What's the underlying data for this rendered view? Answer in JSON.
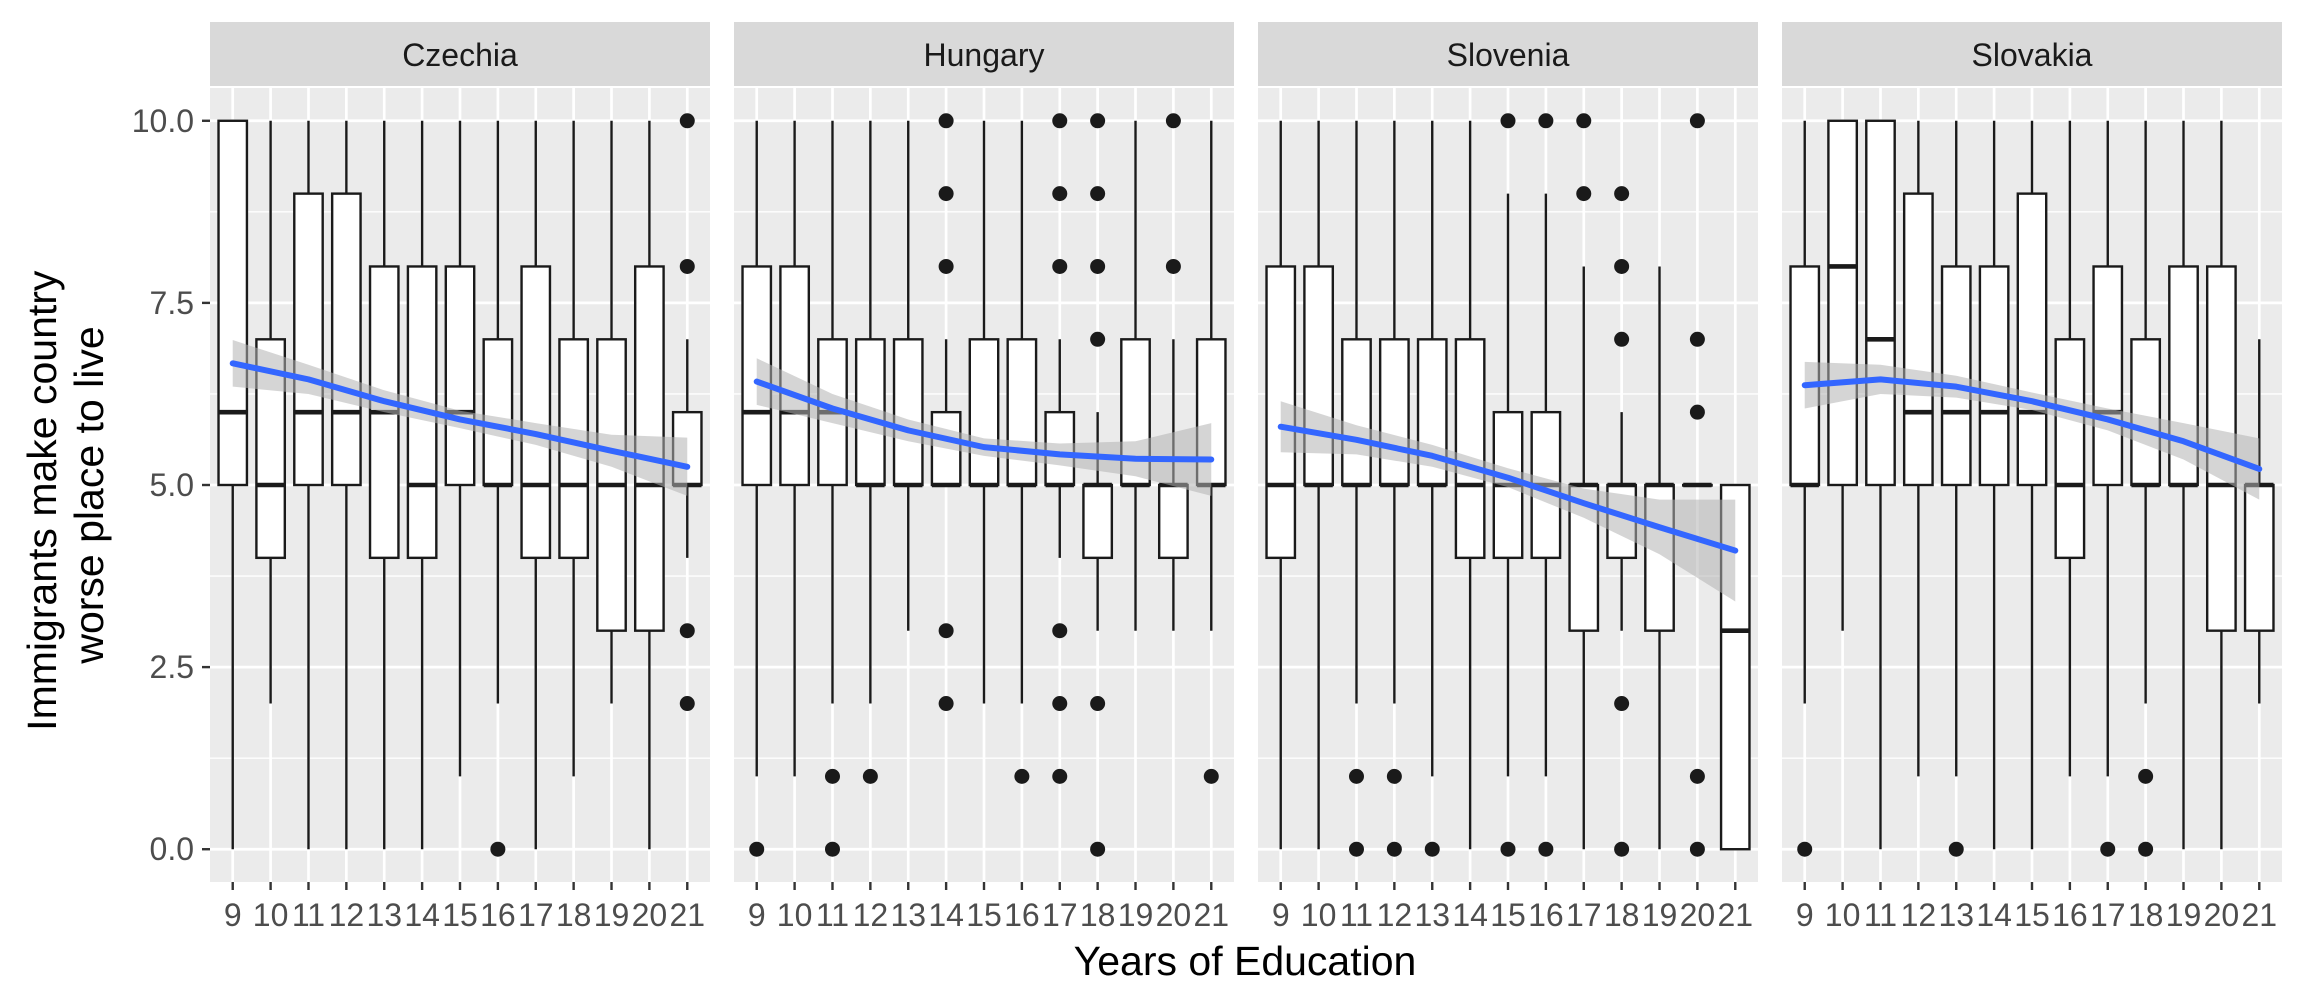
{
  "chart_data": {
    "type": "boxplot",
    "xlabel": "Years of Education",
    "ylabel_lines": [
      "Immigrants make country",
      "worse place to live"
    ],
    "x_categories": [
      9,
      10,
      11,
      12,
      13,
      14,
      15,
      16,
      17,
      18,
      19,
      20,
      21
    ],
    "x_tick_labels": [
      "9",
      "10",
      "11",
      "12",
      "13",
      "14",
      "15",
      "16",
      "17",
      "18",
      "19",
      "20",
      "21"
    ],
    "ylim": [
      -0.45,
      10.45
    ],
    "y_ticks": [
      0,
      2.5,
      5,
      7.5,
      10
    ],
    "y_tick_labels": [
      "0.0",
      "2.5",
      "5.0",
      "7.5",
      "10.0"
    ],
    "grid": true,
    "colors": {
      "panel_bg": "#EBEBEB",
      "strip_bg": "#D9D9D9",
      "grid": "#FFFFFF",
      "box_fill": "#FFFFFF",
      "box_stroke": "#1A1A1A",
      "smooth_line": "#3366FF",
      "smooth_band": "#B3B3B3",
      "axis_text": "#4D4D4D"
    },
    "panels": [
      {
        "name": "Czechia",
        "boxes": [
          {
            "x": 9,
            "lower": 0,
            "q1": 5,
            "median": 6,
            "q3": 10,
            "upper": 10,
            "outliers": []
          },
          {
            "x": 10,
            "lower": 2,
            "q1": 4,
            "median": 5,
            "q3": 7,
            "upper": 10,
            "outliers": []
          },
          {
            "x": 11,
            "lower": 0,
            "q1": 5,
            "median": 6,
            "q3": 9,
            "upper": 10,
            "outliers": []
          },
          {
            "x": 12,
            "lower": 0,
            "q1": 5,
            "median": 6,
            "q3": 9,
            "upper": 10,
            "outliers": []
          },
          {
            "x": 13,
            "lower": 0,
            "q1": 4,
            "median": 6,
            "q3": 8,
            "upper": 10,
            "outliers": []
          },
          {
            "x": 14,
            "lower": 0,
            "q1": 4,
            "median": 5,
            "q3": 8,
            "upper": 10,
            "outliers": []
          },
          {
            "x": 15,
            "lower": 1,
            "q1": 5,
            "median": 6,
            "q3": 8,
            "upper": 10,
            "outliers": []
          },
          {
            "x": 16,
            "lower": 2,
            "q1": 5,
            "median": 5,
            "q3": 7,
            "upper": 10,
            "outliers": [
              0
            ]
          },
          {
            "x": 17,
            "lower": 0,
            "q1": 4,
            "median": 5,
            "q3": 8,
            "upper": 10,
            "outliers": []
          },
          {
            "x": 18,
            "lower": 1,
            "q1": 4,
            "median": 5,
            "q3": 7,
            "upper": 10,
            "outliers": []
          },
          {
            "x": 19,
            "lower": 2,
            "q1": 3,
            "median": 5,
            "q3": 7,
            "upper": 10,
            "outliers": []
          },
          {
            "x": 20,
            "lower": 0,
            "q1": 3,
            "median": 5,
            "q3": 8,
            "upper": 10,
            "outliers": []
          },
          {
            "x": 21,
            "lower": 4,
            "q1": 5,
            "median": 5,
            "q3": 6,
            "upper": 7,
            "outliers": [
              10,
              8,
              3,
              2
            ]
          }
        ],
        "smooth": [
          {
            "x": 9,
            "y": 6.67,
            "lo": 6.35,
            "hi": 6.99
          },
          {
            "x": 11,
            "y": 6.45,
            "lo": 6.25,
            "hi": 6.65
          },
          {
            "x": 13,
            "y": 6.15,
            "lo": 6.0,
            "hi": 6.3
          },
          {
            "x": 15,
            "y": 5.9,
            "lo": 5.78,
            "hi": 6.02
          },
          {
            "x": 17,
            "y": 5.7,
            "lo": 5.55,
            "hi": 5.85
          },
          {
            "x": 19,
            "y": 5.47,
            "lo": 5.25,
            "hi": 5.69
          },
          {
            "x": 21,
            "y": 5.25,
            "lo": 4.85,
            "hi": 5.65
          }
        ]
      },
      {
        "name": "Hungary",
        "boxes": [
          {
            "x": 9,
            "lower": 1,
            "q1": 5,
            "median": 6,
            "q3": 8,
            "upper": 10,
            "outliers": [
              0
            ]
          },
          {
            "x": 10,
            "lower": 1,
            "q1": 5,
            "median": 6,
            "q3": 8,
            "upper": 10,
            "outliers": []
          },
          {
            "x": 11,
            "lower": 2,
            "q1": 5,
            "median": 6,
            "q3": 7,
            "upper": 10,
            "outliers": [
              1,
              0
            ]
          },
          {
            "x": 12,
            "lower": 2,
            "q1": 5,
            "median": 5,
            "q3": 7,
            "upper": 10,
            "outliers": [
              1
            ]
          },
          {
            "x": 13,
            "lower": 3,
            "q1": 5,
            "median": 5,
            "q3": 7,
            "upper": 10,
            "outliers": []
          },
          {
            "x": 14,
            "lower": 5,
            "q1": 5,
            "median": 5,
            "q3": 6,
            "upper": 7,
            "outliers": [
              10,
              9,
              8,
              3,
              2
            ]
          },
          {
            "x": 15,
            "lower": 2,
            "q1": 5,
            "median": 5,
            "q3": 7,
            "upper": 10,
            "outliers": []
          },
          {
            "x": 16,
            "lower": 2,
            "q1": 5,
            "median": 5,
            "q3": 7,
            "upper": 10,
            "outliers": [
              1
            ]
          },
          {
            "x": 17,
            "lower": 4,
            "q1": 5,
            "median": 5,
            "q3": 6,
            "upper": 7,
            "outliers": [
              10,
              9,
              8,
              3,
              2,
              1
            ]
          },
          {
            "x": 18,
            "lower": 3,
            "q1": 4,
            "median": 5,
            "q3": 5,
            "upper": 6,
            "outliers": [
              10,
              9,
              8,
              7,
              2,
              0
            ]
          },
          {
            "x": 19,
            "lower": 3,
            "q1": 5,
            "median": 5,
            "q3": 7,
            "upper": 10,
            "outliers": []
          },
          {
            "x": 20,
            "lower": 3,
            "q1": 4,
            "median": 5,
            "q3": 5,
            "upper": 7,
            "outliers": [
              10,
              8
            ]
          },
          {
            "x": 21,
            "lower": 3,
            "q1": 5,
            "median": 5,
            "q3": 7,
            "upper": 10,
            "outliers": [
              1
            ]
          }
        ],
        "smooth": [
          {
            "x": 9,
            "y": 6.42,
            "lo": 6.1,
            "hi": 6.74
          },
          {
            "x": 11,
            "y": 6.05,
            "lo": 5.85,
            "hi": 6.25
          },
          {
            "x": 13,
            "y": 5.75,
            "lo": 5.6,
            "hi": 5.9
          },
          {
            "x": 15,
            "y": 5.52,
            "lo": 5.4,
            "hi": 5.64
          },
          {
            "x": 17,
            "y": 5.42,
            "lo": 5.27,
            "hi": 5.57
          },
          {
            "x": 19,
            "y": 5.36,
            "lo": 5.12,
            "hi": 5.6
          },
          {
            "x": 21,
            "y": 5.35,
            "lo": 4.85,
            "hi": 5.85
          }
        ]
      },
      {
        "name": "Slovenia",
        "boxes": [
          {
            "x": 9,
            "lower": 0,
            "q1": 4,
            "median": 5,
            "q3": 8,
            "upper": 10,
            "outliers": []
          },
          {
            "x": 10,
            "lower": 0,
            "q1": 5,
            "median": 5,
            "q3": 8,
            "upper": 10,
            "outliers": []
          },
          {
            "x": 11,
            "lower": 2,
            "q1": 5,
            "median": 5,
            "q3": 7,
            "upper": 10,
            "outliers": [
              1,
              0
            ]
          },
          {
            "x": 12,
            "lower": 2,
            "q1": 5,
            "median": 5,
            "q3": 7,
            "upper": 10,
            "outliers": [
              1,
              0
            ]
          },
          {
            "x": 13,
            "lower": 1,
            "q1": 5,
            "median": 5,
            "q3": 7,
            "upper": 10,
            "outliers": [
              0
            ]
          },
          {
            "x": 14,
            "lower": 0,
            "q1": 4,
            "median": 5,
            "q3": 7,
            "upper": 10,
            "outliers": []
          },
          {
            "x": 15,
            "lower": 1,
            "q1": 4,
            "median": 5,
            "q3": 6,
            "upper": 9,
            "outliers": [
              10,
              0
            ]
          },
          {
            "x": 16,
            "lower": 1,
            "q1": 4,
            "median": 5,
            "q3": 6,
            "upper": 9,
            "outliers": [
              10,
              0
            ]
          },
          {
            "x": 17,
            "lower": 0,
            "q1": 3,
            "median": 5,
            "q3": 5,
            "upper": 8,
            "outliers": [
              10,
              9
            ]
          },
          {
            "x": 18,
            "lower": 3,
            "q1": 4,
            "median": 5,
            "q3": 5,
            "upper": 6,
            "outliers": [
              9,
              8,
              7,
              2,
              0
            ]
          },
          {
            "x": 19,
            "lower": 0,
            "q1": 3,
            "median": 5,
            "q3": 5,
            "upper": 8,
            "outliers": []
          },
          {
            "x": 20,
            "lower": 5,
            "q1": 5,
            "median": 5,
            "q3": 5,
            "upper": 5,
            "outliers": [
              10,
              7,
              6,
              1,
              0
            ]
          },
          {
            "x": 21,
            "lower": 0,
            "q1": 0,
            "median": 3,
            "q3": 5,
            "upper": 5,
            "outliers": []
          }
        ],
        "smooth": [
          {
            "x": 9,
            "y": 5.8,
            "lo": 5.45,
            "hi": 6.15
          },
          {
            "x": 11,
            "y": 5.62,
            "lo": 5.42,
            "hi": 5.82
          },
          {
            "x": 13,
            "y": 5.4,
            "lo": 5.25,
            "hi": 5.55
          },
          {
            "x": 15,
            "y": 5.1,
            "lo": 4.97,
            "hi": 5.23
          },
          {
            "x": 17,
            "y": 4.75,
            "lo": 4.55,
            "hi": 4.95
          },
          {
            "x": 19,
            "y": 4.42,
            "lo": 4.05,
            "hi": 4.8
          },
          {
            "x": 21,
            "y": 4.1,
            "lo": 3.4,
            "hi": 4.8
          }
        ]
      },
      {
        "name": "Slovakia",
        "boxes": [
          {
            "x": 9,
            "lower": 2,
            "q1": 5,
            "median": 5,
            "q3": 8,
            "upper": 10,
            "outliers": [
              0
            ]
          },
          {
            "x": 10,
            "lower": 3,
            "q1": 5,
            "median": 8,
            "q3": 10,
            "upper": 10,
            "outliers": []
          },
          {
            "x": 11,
            "lower": 0,
            "q1": 5,
            "median": 7,
            "q3": 10,
            "upper": 10,
            "outliers": []
          },
          {
            "x": 12,
            "lower": 1,
            "q1": 5,
            "median": 6,
            "q3": 9,
            "upper": 10,
            "outliers": []
          },
          {
            "x": 13,
            "lower": 1,
            "q1": 5,
            "median": 6,
            "q3": 8,
            "upper": 10,
            "outliers": [
              0
            ]
          },
          {
            "x": 14,
            "lower": 0,
            "q1": 5,
            "median": 6,
            "q3": 8,
            "upper": 10,
            "outliers": []
          },
          {
            "x": 15,
            "lower": 0,
            "q1": 5,
            "median": 6,
            "q3": 9,
            "upper": 10,
            "outliers": []
          },
          {
            "x": 16,
            "lower": 1,
            "q1": 4,
            "median": 5,
            "q3": 7,
            "upper": 10,
            "outliers": []
          },
          {
            "x": 17,
            "lower": 1,
            "q1": 5,
            "median": 6,
            "q3": 8,
            "upper": 10,
            "outliers": [
              0
            ]
          },
          {
            "x": 18,
            "lower": 2,
            "q1": 5,
            "median": 5,
            "q3": 7,
            "upper": 10,
            "outliers": [
              1,
              0
            ]
          },
          {
            "x": 19,
            "lower": 0,
            "q1": 5,
            "median": 5,
            "q3": 8,
            "upper": 10,
            "outliers": []
          },
          {
            "x": 20,
            "lower": 0,
            "q1": 3,
            "median": 5,
            "q3": 8,
            "upper": 10,
            "outliers": []
          },
          {
            "x": 21,
            "lower": 2,
            "q1": 3,
            "median": 5,
            "q3": 5,
            "upper": 7,
            "outliers": []
          }
        ],
        "smooth": [
          {
            "x": 9,
            "y": 6.37,
            "lo": 6.05,
            "hi": 6.69
          },
          {
            "x": 11,
            "y": 6.45,
            "lo": 6.25,
            "hi": 6.65
          },
          {
            "x": 13,
            "y": 6.35,
            "lo": 6.2,
            "hi": 6.5
          },
          {
            "x": 15,
            "y": 6.15,
            "lo": 6.03,
            "hi": 6.27
          },
          {
            "x": 17,
            "y": 5.9,
            "lo": 5.75,
            "hi": 6.05
          },
          {
            "x": 19,
            "y": 5.6,
            "lo": 5.35,
            "hi": 5.85
          },
          {
            "x": 21,
            "y": 5.22,
            "lo": 4.8,
            "hi": 5.64
          }
        ]
      }
    ]
  }
}
